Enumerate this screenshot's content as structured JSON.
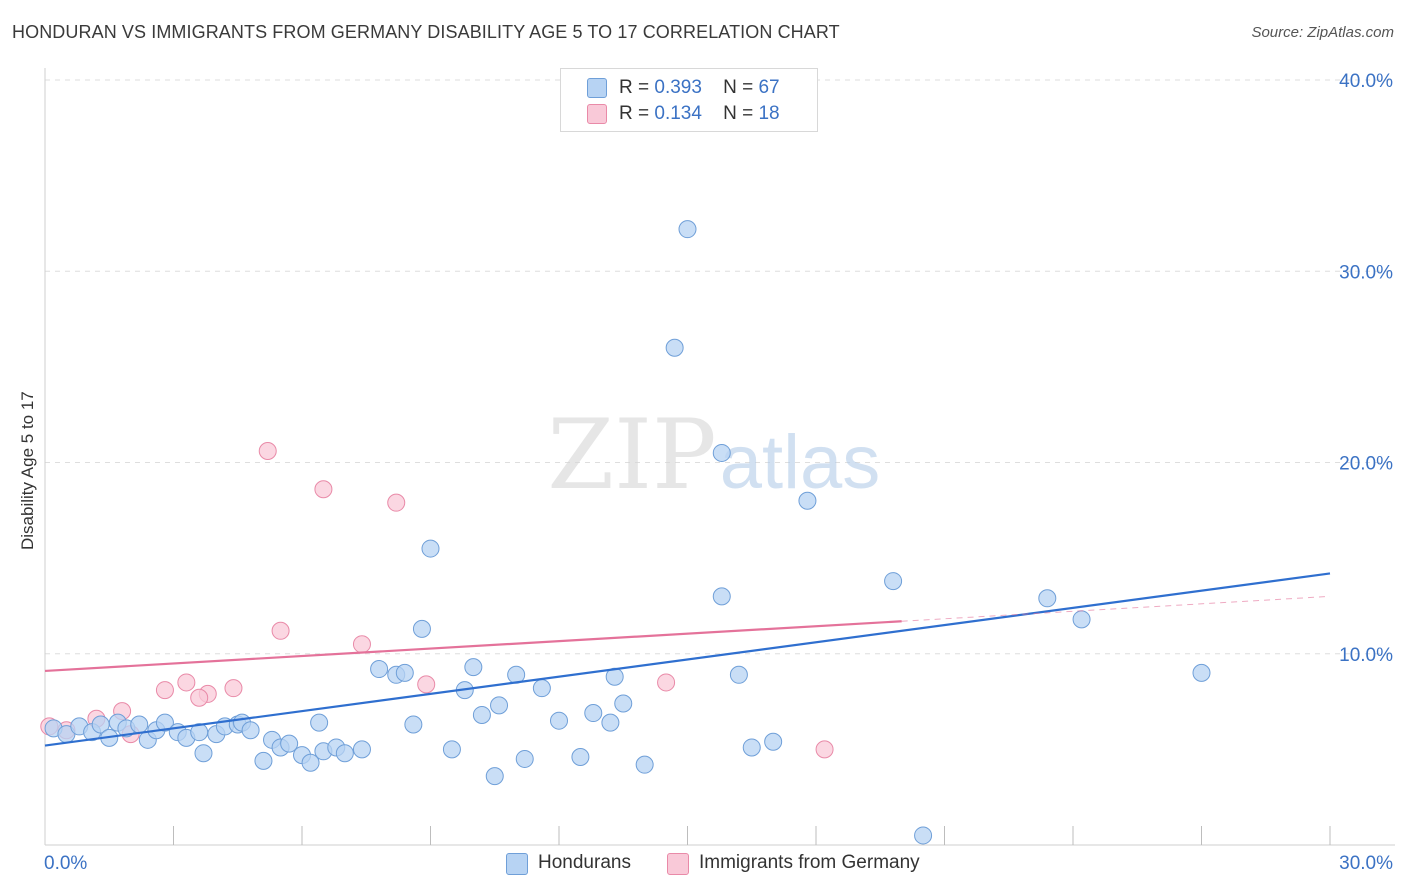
{
  "header": {
    "title": "HONDURAN VS IMMIGRANTS FROM GERMANY DISABILITY AGE 5 TO 17 CORRELATION CHART",
    "source": "Source: ZipAtlas.com"
  },
  "watermark": {
    "zip": "ZIP",
    "atlas": "atlas"
  },
  "legend_top": {
    "rows": [
      {
        "r_label": "R =",
        "r_value": "0.393",
        "n_label": "N =",
        "n_value": "67"
      },
      {
        "r_label": "R =",
        "r_value": "0.134",
        "n_label": "N =",
        "n_value": "18"
      }
    ]
  },
  "legend_bottom": {
    "series1": "Hondurans",
    "series2": "Immigrants from Germany"
  },
  "colors": {
    "blue_fill": "#b7d3f3",
    "blue_stroke": "#6f9fd8",
    "blue_line": "#2f6fcf",
    "pink_fill": "#f9c9d8",
    "pink_stroke": "#e98aa8",
    "pink_line": "#e4729a",
    "grid": "#dedede",
    "tick_text": "#3b72c4"
  },
  "chart_data": {
    "type": "scatter",
    "title": "HONDURAN VS IMMIGRANTS FROM GERMANY DISABILITY AGE 5 TO 17 CORRELATION CHART",
    "xlabel": "",
    "ylabel": "Disability Age 5 to 17",
    "xlim": [
      0,
      30
    ],
    "ylim": [
      0,
      40
    ],
    "x_tick_labels": [
      "0.0%",
      "30.0%"
    ],
    "y_ticks": [
      10,
      20,
      30,
      40
    ],
    "y_tick_labels": [
      "10.0%",
      "20.0%",
      "30.0%",
      "40.0%"
    ],
    "series": [
      {
        "name": "Hondurans",
        "r": 0.393,
        "n": 67,
        "trend": {
          "x": [
            0,
            30
          ],
          "y": [
            5.2,
            14.2
          ],
          "dash_from": null
        },
        "points": [
          [
            0.2,
            6.1
          ],
          [
            0.5,
            5.8
          ],
          [
            0.8,
            6.2
          ],
          [
            1.1,
            5.9
          ],
          [
            1.3,
            6.3
          ],
          [
            1.5,
            5.6
          ],
          [
            1.7,
            6.4
          ],
          [
            1.9,
            6.1
          ],
          [
            2.2,
            6.3
          ],
          [
            2.4,
            5.5
          ],
          [
            2.6,
            6.0
          ],
          [
            2.8,
            6.4
          ],
          [
            3.1,
            5.9
          ],
          [
            3.3,
            5.6
          ],
          [
            3.6,
            5.9
          ],
          [
            3.7,
            4.8
          ],
          [
            4.0,
            5.8
          ],
          [
            4.2,
            6.2
          ],
          [
            4.5,
            6.3
          ],
          [
            4.6,
            6.4
          ],
          [
            4.8,
            6.0
          ],
          [
            5.1,
            4.4
          ],
          [
            5.3,
            5.5
          ],
          [
            5.5,
            5.1
          ],
          [
            5.7,
            5.3
          ],
          [
            6.0,
            4.7
          ],
          [
            6.2,
            4.3
          ],
          [
            6.4,
            6.4
          ],
          [
            6.5,
            4.9
          ],
          [
            6.8,
            5.1
          ],
          [
            7.0,
            4.8
          ],
          [
            7.8,
            9.2
          ],
          [
            8.2,
            8.9
          ],
          [
            8.4,
            9.0
          ],
          [
            8.6,
            6.3
          ],
          [
            8.8,
            11.3
          ],
          [
            9.0,
            15.5
          ],
          [
            9.5,
            5.0
          ],
          [
            9.8,
            8.1
          ],
          [
            10.0,
            9.3
          ],
          [
            10.5,
            3.6
          ],
          [
            10.6,
            7.3
          ],
          [
            11.0,
            8.9
          ],
          [
            11.6,
            8.2
          ],
          [
            12.0,
            6.5
          ],
          [
            12.5,
            4.6
          ],
          [
            12.8,
            6.9
          ],
          [
            13.2,
            6.4
          ],
          [
            13.3,
            8.8
          ],
          [
            13.5,
            7.4
          ],
          [
            14.7,
            26.0
          ],
          [
            15.0,
            32.2
          ],
          [
            15.8,
            20.5
          ],
          [
            15.8,
            13.0
          ],
          [
            16.2,
            8.9
          ],
          [
            16.5,
            5.1
          ],
          [
            17.8,
            18.0
          ],
          [
            19.8,
            13.8
          ],
          [
            20.5,
            0.5
          ],
          [
            23.4,
            12.9
          ],
          [
            24.2,
            11.8
          ],
          [
            27.0,
            9.0
          ],
          [
            17.0,
            5.4
          ],
          [
            14.0,
            4.2
          ],
          [
            11.2,
            4.5
          ],
          [
            7.4,
            5.0
          ],
          [
            10.2,
            6.8
          ]
        ]
      },
      {
        "name": "Immigrants from Germany",
        "r": 0.134,
        "n": 18,
        "trend": {
          "x": [
            0,
            30
          ],
          "y": [
            9.1,
            13.0
          ],
          "dash_from": 20
        },
        "points": [
          [
            0.1,
            6.2
          ],
          [
            0.5,
            6.0
          ],
          [
            1.2,
            6.6
          ],
          [
            1.8,
            7.0
          ],
          [
            2.0,
            5.8
          ],
          [
            2.8,
            8.1
          ],
          [
            3.3,
            8.5
          ],
          [
            3.8,
            7.9
          ],
          [
            4.4,
            8.2
          ],
          [
            5.2,
            20.6
          ],
          [
            5.5,
            11.2
          ],
          [
            6.5,
            18.6
          ],
          [
            7.4,
            10.5
          ],
          [
            8.2,
            17.9
          ],
          [
            8.9,
            8.4
          ],
          [
            14.5,
            8.5
          ],
          [
            18.2,
            5.0
          ],
          [
            3.6,
            7.7
          ]
        ]
      }
    ]
  }
}
